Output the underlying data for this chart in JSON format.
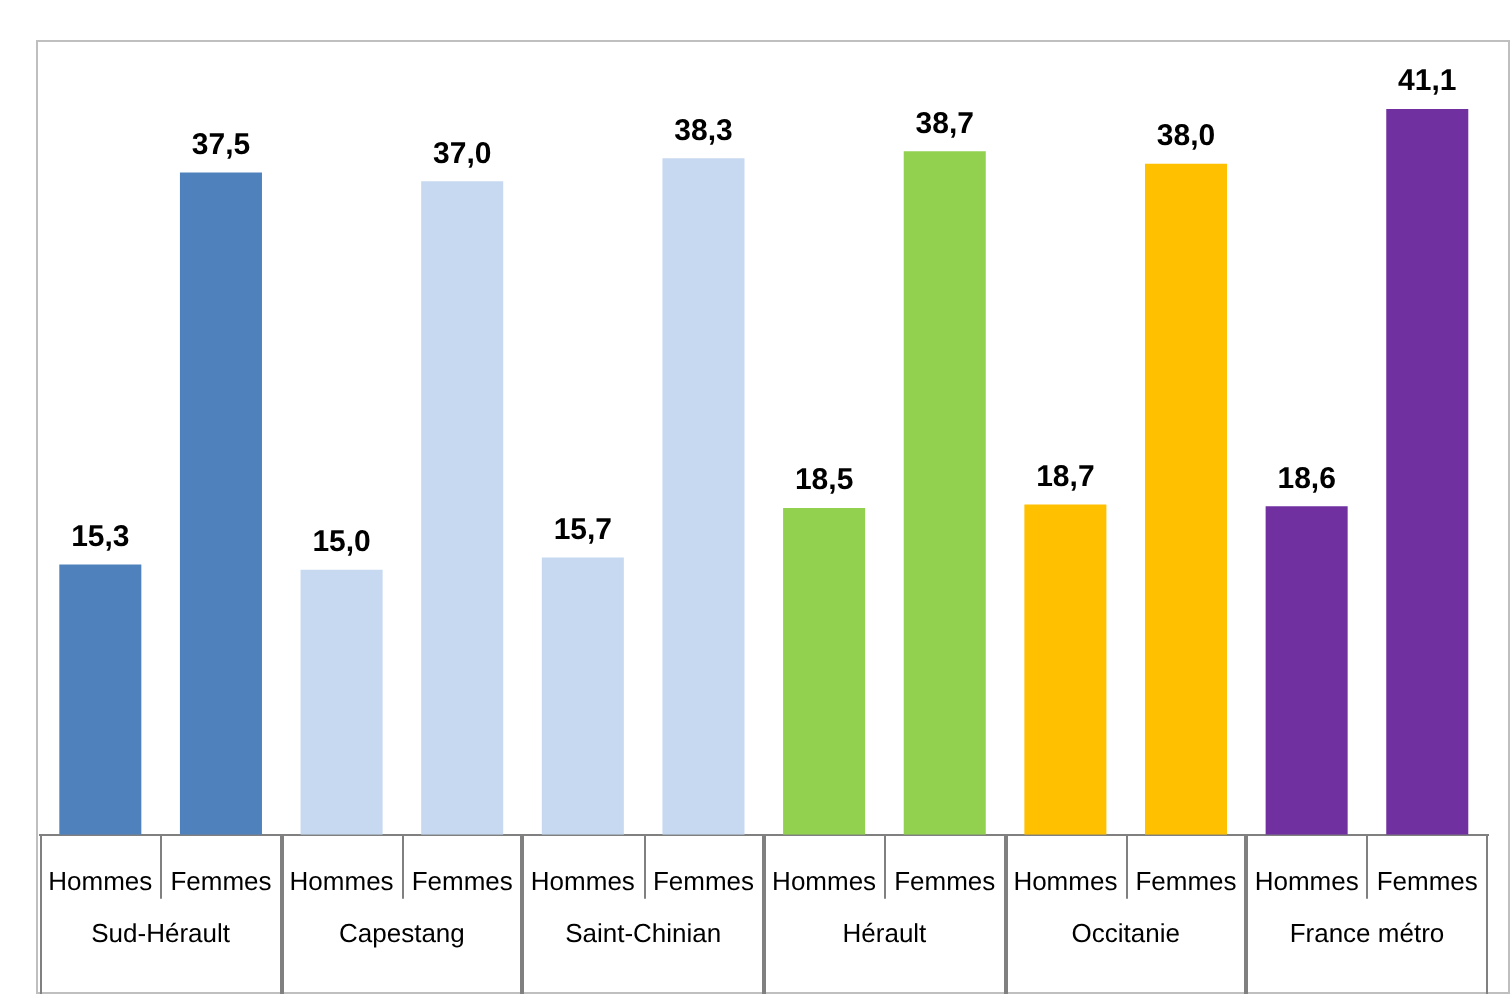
{
  "chart_data": {
    "type": "bar",
    "categories": [
      "Hommes",
      "Femmes",
      "Hommes",
      "Femmes",
      "Hommes",
      "Femmes",
      "Hommes",
      "Femmes",
      "Hommes",
      "Femmes",
      "Hommes",
      "Femmes"
    ],
    "values": [
      15.3,
      37.5,
      15.0,
      37.0,
      15.7,
      38.3,
      18.5,
      38.7,
      18.7,
      38.0,
      18.6,
      41.1
    ],
    "colors": [
      "#4f81bd",
      "#4f81bd",
      "#c6d9f1",
      "#c6d9f1",
      "#c6d9f1",
      "#c6d9f1",
      "#92d050",
      "#92d050",
      "#ffc000",
      "#ffc000",
      "#7030a0",
      "#7030a0"
    ],
    "annotations": [
      "Sud-Hérault",
      "Capestang",
      "Saint-Chinian",
      "Hérault",
      "Occitanie",
      "France métro"
    ],
    "value_labels": [
      "15,3",
      "37,5",
      "15,0",
      "37,0",
      "15,7",
      "38,3",
      "18,5",
      "38,7",
      "18,7",
      "38,0",
      "18,6",
      "41,1"
    ],
    "grid": false,
    "legend": false
  }
}
